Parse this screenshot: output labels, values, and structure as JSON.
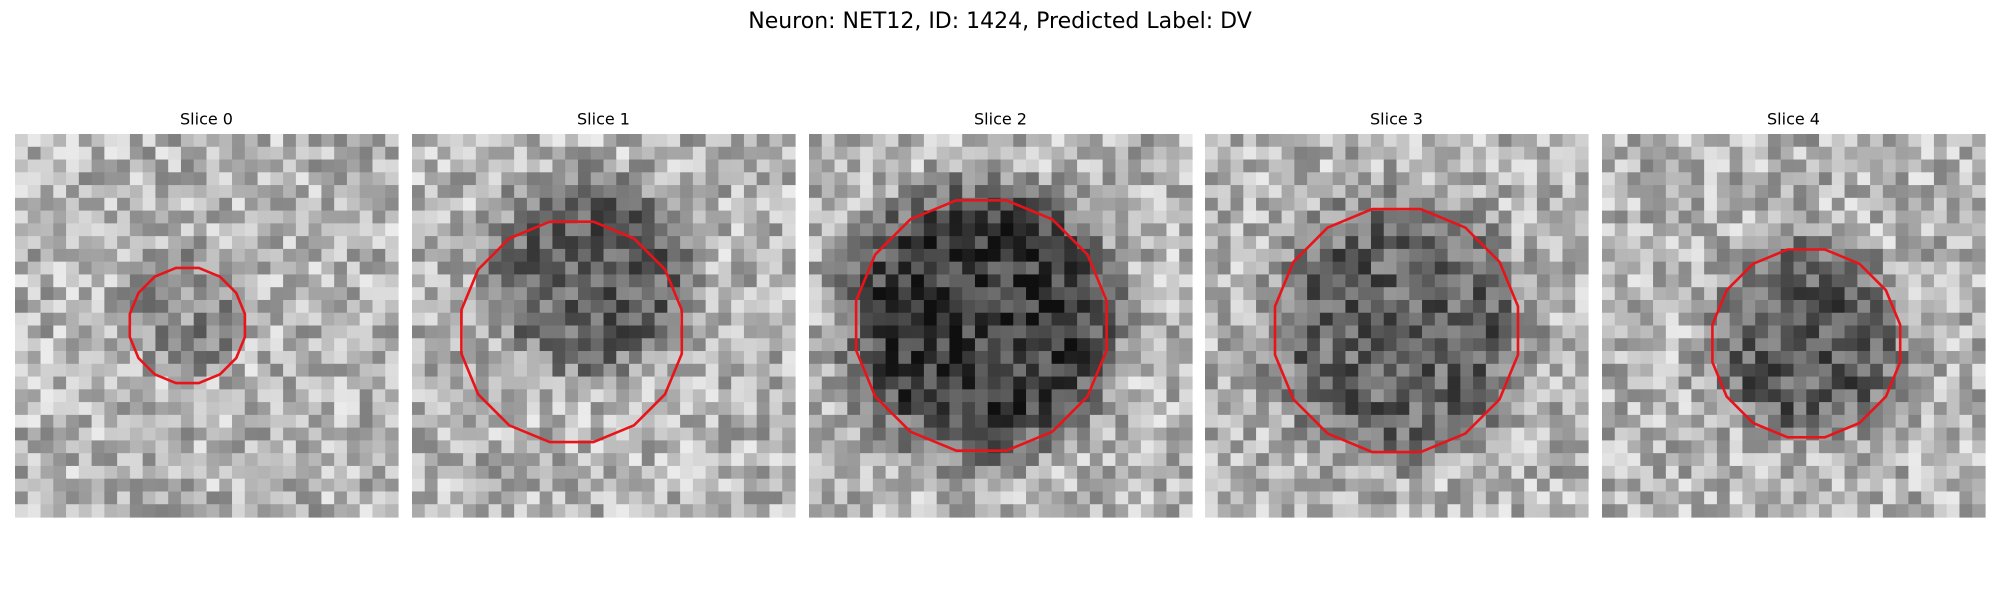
{
  "title": "Neuron: NET12, ID: 1424, Predicted Label: DV",
  "panels": [
    {
      "title": "Slice 0"
    },
    {
      "title": "Slice 1"
    },
    {
      "title": "Slice 2"
    },
    {
      "title": "Slice 3"
    },
    {
      "title": "Slice 4"
    }
  ]
}
